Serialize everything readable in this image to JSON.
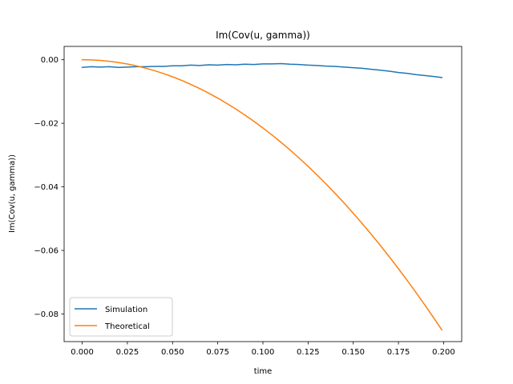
{
  "chart_data": {
    "type": "line",
    "title": "Im(Cov(u, gamma))",
    "xlabel": "time",
    "ylabel": "Im(Cov(u, gamma))",
    "xlim": [
      -0.01,
      0.21
    ],
    "ylim": [
      -0.0887,
      0.0042
    ],
    "xticks": [
      0.0,
      0.025,
      0.05,
      0.075,
      0.1,
      0.125,
      0.15,
      0.175,
      0.2
    ],
    "xtick_labels": [
      "0.000",
      "0.025",
      "0.050",
      "0.075",
      "0.100",
      "0.125",
      "0.150",
      "0.175",
      "0.200"
    ],
    "yticks": [
      0.0,
      -0.02,
      -0.04,
      -0.06,
      -0.08
    ],
    "ytick_labels": [
      "0.00",
      "−0.02",
      "−0.04",
      "−0.06",
      "−0.08"
    ],
    "grid": false,
    "legend_position": "lower-left",
    "series": [
      {
        "name": "Simulation",
        "color": "#1f77b4",
        "x": [
          0.0,
          0.005,
          0.01,
          0.015,
          0.02,
          0.025,
          0.03,
          0.035,
          0.04,
          0.045,
          0.05,
          0.055,
          0.06,
          0.065,
          0.07,
          0.075,
          0.08,
          0.085,
          0.09,
          0.095,
          0.1,
          0.105,
          0.11,
          0.115,
          0.12,
          0.125,
          0.13,
          0.135,
          0.14,
          0.145,
          0.15,
          0.155,
          0.16,
          0.165,
          0.17,
          0.175,
          0.18,
          0.185,
          0.19,
          0.195,
          0.199
        ],
        "y": [
          -0.0024,
          -0.0022,
          -0.0023,
          -0.0022,
          -0.0024,
          -0.0023,
          -0.0022,
          -0.0022,
          -0.0021,
          -0.0021,
          -0.0019,
          -0.0019,
          -0.0017,
          -0.0018,
          -0.0016,
          -0.0017,
          -0.0015,
          -0.0016,
          -0.0014,
          -0.0015,
          -0.0013,
          -0.0013,
          -0.0012,
          -0.0014,
          -0.0015,
          -0.0017,
          -0.0018,
          -0.002,
          -0.0021,
          -0.0023,
          -0.0025,
          -0.0027,
          -0.003,
          -0.0033,
          -0.0036,
          -0.004,
          -0.0043,
          -0.0047,
          -0.005,
          -0.0053,
          -0.0056
        ]
      },
      {
        "name": "Theoretical",
        "color": "#ff7f0e",
        "x": [
          0.0,
          0.005,
          0.01,
          0.015,
          0.02,
          0.025,
          0.03,
          0.035,
          0.04,
          0.045,
          0.05,
          0.055,
          0.06,
          0.065,
          0.07,
          0.075,
          0.08,
          0.085,
          0.09,
          0.095,
          0.1,
          0.105,
          0.11,
          0.115,
          0.12,
          0.125,
          0.13,
          0.135,
          0.14,
          0.145,
          0.15,
          0.155,
          0.16,
          0.165,
          0.17,
          0.175,
          0.18,
          0.185,
          0.19,
          0.195,
          0.199
        ],
        "y": [
          0.0,
          -5e-05,
          -0.00021,
          -0.00048,
          -0.00086,
          -0.00134,
          -0.00193,
          -0.00263,
          -0.00343,
          -0.00435,
          -0.00537,
          -0.00649,
          -0.00773,
          -0.00907,
          -0.01052,
          -0.01208,
          -0.01374,
          -0.01551,
          -0.01739,
          -0.01938,
          -0.02147,
          -0.02367,
          -0.02598,
          -0.02839,
          -0.03092,
          -0.03355,
          -0.03629,
          -0.03913,
          -0.04208,
          -0.04514,
          -0.04831,
          -0.05159,
          -0.05497,
          -0.05846,
          -0.06205,
          -0.06576,
          -0.06957,
          -0.07348,
          -0.07751,
          -0.08164,
          -0.085
        ]
      }
    ]
  }
}
